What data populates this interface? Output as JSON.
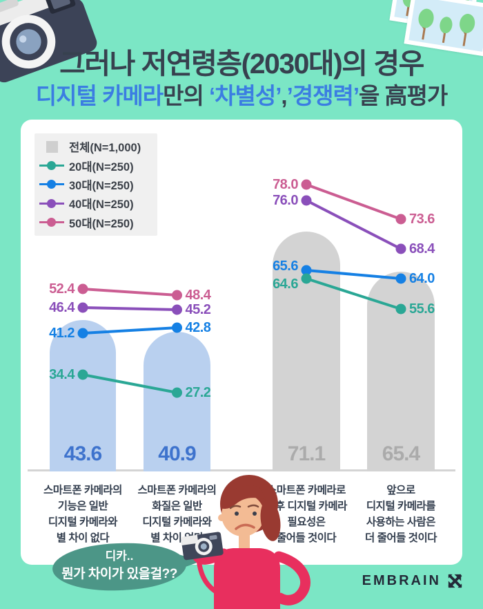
{
  "page": {
    "bg_color": "#7BE6C5",
    "card_color": "#FFFFFF",
    "navy_text_color": "#37414F",
    "accent_blue_color": "#3B7DE2"
  },
  "header": {
    "title_line1": "그러나 저연령층(2030대)의 경우",
    "title_line2_segments": [
      {
        "text": "디지털 카메라",
        "color": "#3B7DE2"
      },
      {
        "text": "만의 ",
        "color": "#37414F"
      },
      {
        "text": "‘차별성’",
        "color": "#3B7DE2"
      },
      {
        "text": ",",
        "color": "#37414F"
      },
      {
        "text": "’경쟁력’",
        "color": "#3B7DE2"
      },
      {
        "text": "을 高평가",
        "color": "#37414F"
      }
    ]
  },
  "chart_data": {
    "type": "bar+line",
    "unit": "%",
    "legend": {
      "bg_color": "#F0F0F0",
      "text_color": "#3B4048",
      "items": [
        {
          "label": "전체(N=1,000)",
          "marker": "square",
          "color": "#CFCFCF"
        },
        {
          "label": "20대(N=250)",
          "marker": "dot-line",
          "color": "#2AA795"
        },
        {
          "label": "30대(N=250)",
          "marker": "dot-line",
          "color": "#1580E4"
        },
        {
          "label": "40대(N=250)",
          "marker": "dot-line",
          "color": "#8A4FBA"
        },
        {
          "label": "50대(N=250)",
          "marker": "dot-line",
          "color": "#CB5D92"
        }
      ]
    },
    "bars": [
      {
        "category": "스마트폰 카메라의\n기능은 일반\n디지털 카메라와\n별 차이 없다",
        "series": "전체",
        "value": 43.6,
        "fill": "#B9D0EF",
        "value_color": "#3E73CD"
      },
      {
        "category": "스마트폰 카메라의\n화질은 일반\n디지털 카메라와\n별 차이 없다",
        "series": "전체",
        "value": 40.9,
        "fill": "#B9D0EF",
        "value_color": "#3E73CD"
      },
      {
        "category": "스마트폰 카메라로\n향후 디지털 카메라\n필요성은\n줄어들 것이다",
        "series": "전체",
        "value": 71.1,
        "fill": "#D3D3D3",
        "value_color": "#ABABAB"
      },
      {
        "category": "앞으로\n디지털 카메라를\n사용하는 사람은\n더 줄어들 것이다",
        "series": "전체",
        "value": 65.4,
        "fill": "#D3D3D3",
        "value_color": "#ABABAB"
      }
    ],
    "line_series": [
      {
        "name": "50대",
        "color": "#CB5D92",
        "values": [
          52.4,
          48.4,
          78.0,
          73.6
        ]
      },
      {
        "name": "40대",
        "color": "#8A4FBA",
        "values": [
          46.4,
          45.2,
          76.0,
          68.4
        ]
      },
      {
        "name": "30대",
        "color": "#1580E4",
        "values": [
          41.2,
          42.8,
          65.6,
          64.0
        ]
      },
      {
        "name": "20대",
        "color": "#2AA795",
        "values": [
          34.4,
          27.2,
          64.6,
          55.6
        ]
      }
    ],
    "line_segments": "values 0→1 connect bars 1–2, values 2→3 connect bars 3–4",
    "baseline_color": "#D4D4D4",
    "category_text_color": "#333E4E"
  },
  "speech_bubble": {
    "bg_color": "#4C9687",
    "line1": "디카..",
    "line2": "뭔가 차이가 있을걸??"
  },
  "footer": {
    "logo_text": "EMBRAIN",
    "logo_color": "#232A38"
  }
}
